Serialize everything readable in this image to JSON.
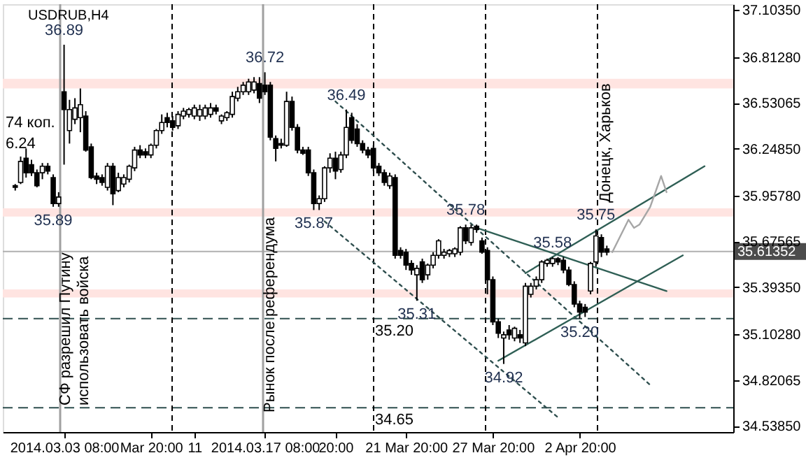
{
  "chart_data": {
    "type": "candlestick",
    "title": "USDRUB,H4",
    "categories": [
      null,
      null,
      null,
      null,
      null,
      null,
      null,
      null,
      null,
      "2014.03.03 08:00",
      null,
      null,
      null,
      null,
      null,
      null,
      null,
      null,
      null,
      null,
      null,
      null,
      null,
      null,
      null,
      "Mar 20:00",
      null,
      null,
      null,
      null,
      null,
      null,
      null,
      "11",
      null,
      null,
      null,
      null,
      null,
      null,
      null,
      null,
      null,
      null,
      null,
      null,
      "2014.03.17 08:00",
      null,
      null,
      null,
      null,
      null,
      null,
      null,
      null,
      null,
      null,
      null,
      null,
      "20:00",
      null,
      null,
      null,
      null,
      null,
      null,
      null,
      null,
      null,
      null,
      null,
      null,
      "21 Mar 20:00",
      null,
      null,
      null,
      null,
      null,
      null,
      null,
      null,
      null,
      null,
      null,
      null,
      null,
      null,
      null,
      "27 Mar 20:00",
      null,
      null,
      null,
      null,
      null,
      null,
      null,
      null,
      null,
      null,
      null,
      null,
      null,
      null,
      null,
      "2 Apr 20:00",
      null,
      null,
      null,
      null,
      null,
      null,
      null,
      null,
      null,
      null,
      null,
      null,
      null,
      null,
      null,
      null,
      null,
      null,
      null,
      null,
      null,
      null,
      null,
      null,
      null,
      null,
      null
    ],
    "ohlc": [
      [
        36.02,
        36.03,
        35.99,
        36.01
      ],
      [
        36.04,
        36.2,
        36.03,
        36.17
      ],
      [
        36.19,
        36.25,
        36.07,
        36.1
      ],
      [
        36.15,
        36.18,
        36.08,
        36.1
      ],
      [
        36.1,
        36.12,
        36.01,
        36.02
      ],
      [
        36.1,
        36.16,
        36.06,
        36.14
      ],
      [
        36.14,
        36.16,
        36.09,
        36.11
      ],
      [
        36.07,
        36.09,
        35.89,
        35.91
      ],
      [
        35.91,
        35.98,
        35.89,
        35.95
      ],
      [
        36.6,
        36.89,
        36.15,
        36.49
      ],
      [
        36.36,
        36.55,
        36.28,
        36.49
      ],
      [
        36.43,
        36.56,
        36.4,
        36.5
      ],
      [
        36.44,
        36.62,
        36.35,
        36.52
      ],
      [
        36.45,
        36.48,
        36.23,
        36.24
      ],
      [
        36.26,
        36.28,
        36.06,
        36.07
      ],
      [
        36.08,
        36.1,
        36.03,
        36.06
      ],
      [
        36.07,
        36.09,
        36.02,
        36.04
      ],
      [
        36.01,
        36.16,
        35.99,
        36.14
      ],
      [
        36.14,
        36.16,
        35.9,
        35.97
      ],
      [
        35.99,
        36.1,
        35.98,
        36.07
      ],
      [
        36.03,
        36.09,
        36.01,
        36.07
      ],
      [
        36.06,
        36.15,
        36.04,
        36.14
      ],
      [
        36.13,
        36.26,
        36.11,
        36.24
      ],
      [
        36.24,
        36.27,
        36.19,
        36.21
      ],
      [
        36.23,
        36.25,
        36.19,
        36.21
      ],
      [
        36.21,
        36.28,
        36.19,
        36.27
      ],
      [
        36.27,
        36.37,
        36.25,
        36.36
      ],
      [
        36.36,
        36.46,
        36.34,
        36.41
      ],
      [
        36.44,
        36.47,
        36.38,
        36.41
      ],
      [
        36.42,
        36.45,
        36.36,
        36.38
      ],
      [
        36.39,
        36.48,
        36.37,
        36.46
      ],
      [
        36.45,
        36.5,
        36.43,
        36.48
      ],
      [
        36.46,
        36.5,
        36.44,
        36.49
      ],
      [
        36.45,
        36.52,
        36.43,
        36.5
      ],
      [
        36.45,
        36.52,
        36.42,
        36.49
      ],
      [
        36.45,
        36.52,
        36.43,
        36.5
      ],
      [
        36.46,
        36.53,
        36.44,
        36.5
      ],
      [
        36.5,
        36.52,
        36.46,
        36.48
      ],
      [
        36.42,
        36.46,
        36.4,
        36.45
      ],
      [
        36.44,
        36.48,
        36.42,
        36.47
      ],
      [
        36.46,
        36.6,
        36.44,
        36.57
      ],
      [
        36.56,
        36.63,
        36.54,
        36.6
      ],
      [
        36.6,
        36.66,
        36.58,
        36.64
      ],
      [
        36.6,
        36.68,
        36.58,
        36.66
      ],
      [
        36.61,
        36.69,
        36.59,
        36.66
      ],
      [
        36.65,
        36.69,
        36.53,
        36.56
      ],
      [
        36.64,
        36.72,
        36.58,
        36.6
      ],
      [
        36.64,
        36.66,
        36.3,
        36.32
      ],
      [
        36.31,
        36.33,
        36.17,
        36.25
      ],
      [
        36.28,
        36.31,
        36.25,
        36.27
      ],
      [
        36.27,
        36.6,
        36.26,
        36.54
      ],
      [
        36.54,
        36.57,
        36.36,
        36.38
      ],
      [
        36.38,
        36.4,
        36.22,
        36.24
      ],
      [
        36.24,
        36.26,
        36.21,
        36.22
      ],
      [
        36.24,
        36.26,
        36.08,
        36.1
      ],
      [
        36.1,
        36.12,
        35.87,
        35.91
      ],
      [
        35.91,
        35.96,
        35.87,
        35.94
      ],
      [
        35.94,
        36.14,
        35.92,
        36.13
      ],
      [
        36.13,
        36.22,
        36.1,
        36.19
      ],
      [
        36.19,
        36.23,
        36.06,
        36.11
      ],
      [
        36.12,
        36.23,
        36.1,
        36.21
      ],
      [
        36.21,
        36.49,
        36.19,
        36.38
      ],
      [
        36.44,
        36.47,
        36.28,
        36.3
      ],
      [
        36.37,
        36.4,
        36.26,
        36.28
      ],
      [
        36.28,
        36.3,
        36.22,
        36.24
      ],
      [
        36.24,
        36.26,
        36.19,
        36.21
      ],
      [
        36.25,
        36.27,
        36.11,
        36.13
      ],
      [
        36.14,
        36.16,
        36.08,
        36.1
      ],
      [
        36.1,
        36.12,
        36.02,
        36.04
      ],
      [
        36.02,
        36.1,
        36.0,
        36.08
      ],
      [
        36.07,
        36.09,
        35.57,
        35.59
      ],
      [
        35.62,
        35.64,
        35.57,
        35.59
      ],
      [
        35.61,
        35.63,
        35.5,
        35.53
      ],
      [
        35.54,
        35.56,
        35.47,
        35.5
      ],
      [
        35.47,
        35.53,
        35.31,
        35.51
      ],
      [
        35.55,
        35.57,
        35.42,
        35.44
      ],
      [
        35.47,
        35.54,
        35.44,
        35.53
      ],
      [
        35.53,
        35.61,
        35.51,
        35.59
      ],
      [
        35.59,
        35.69,
        35.57,
        35.68
      ],
      [
        35.59,
        35.63,
        35.57,
        35.61
      ],
      [
        35.6,
        35.63,
        35.58,
        35.62
      ],
      [
        35.6,
        35.64,
        35.58,
        35.63
      ],
      [
        35.61,
        35.77,
        35.59,
        35.76
      ],
      [
        35.76,
        35.78,
        35.66,
        35.68
      ],
      [
        35.67,
        35.78,
        35.65,
        35.76
      ],
      [
        35.77,
        35.78,
        35.73,
        35.75
      ],
      [
        35.68,
        35.7,
        35.6,
        35.61
      ],
      [
        35.62,
        35.64,
        35.35,
        35.44
      ],
      [
        35.44,
        35.46,
        35.16,
        35.18
      ],
      [
        35.18,
        35.2,
        35.08,
        35.11
      ],
      [
        35.08,
        35.12,
        34.92,
        35.1
      ],
      [
        35.13,
        35.16,
        35.07,
        35.1
      ],
      [
        35.08,
        35.15,
        35.06,
        35.14
      ],
      [
        35.1,
        35.13,
        35.05,
        35.08
      ],
      [
        35.05,
        35.42,
        35.03,
        35.4
      ],
      [
        35.35,
        35.42,
        35.33,
        35.4
      ],
      [
        35.4,
        35.46,
        35.38,
        35.44
      ],
      [
        35.44,
        35.56,
        35.42,
        35.55
      ],
      [
        35.54,
        35.57,
        35.52,
        35.56
      ],
      [
        35.54,
        35.58,
        35.52,
        35.57
      ],
      [
        35.57,
        35.58,
        35.53,
        35.55
      ],
      [
        35.56,
        35.58,
        35.48,
        35.5
      ],
      [
        35.5,
        35.52,
        35.4,
        35.41
      ],
      [
        35.41,
        35.43,
        35.27,
        35.29
      ],
      [
        35.29,
        35.31,
        35.2,
        35.24
      ],
      [
        35.27,
        35.29,
        35.21,
        35.24
      ],
      [
        35.37,
        35.55,
        35.35,
        35.54
      ],
      [
        35.55,
        35.75,
        35.52,
        35.71
      ],
      [
        35.7,
        35.72,
        35.58,
        35.61
      ],
      [
        35.63,
        35.65,
        35.59,
        35.61
      ],
      null,
      null,
      null,
      null,
      null,
      null,
      null,
      null,
      null,
      null,
      null,
      null,
      null,
      null,
      null,
      null,
      null,
      null,
      null,
      null,
      null,
      null
    ],
    "series": [
      {
        "type": "line",
        "color": "#2f4f4f",
        "line_style": "dotted",
        "values": [
          null,
          null,
          null,
          null,
          null,
          null,
          null,
          null,
          null,
          null,
          null,
          null,
          null,
          null,
          null,
          null,
          null,
          null,
          null,
          null,
          null,
          null,
          null,
          null,
          null,
          null,
          null,
          null,
          null,
          null,
          null,
          null,
          null,
          null,
          null,
          null,
          null,
          null,
          null,
          null,
          null,
          null,
          null,
          null,
          null,
          null,
          null,
          null,
          null,
          null,
          null,
          null,
          null,
          null,
          null,
          null,
          null,
          null,
          null,
          36.54,
          null,
          null,
          null,
          null,
          null,
          null,
          null,
          null,
          null,
          null,
          null,
          null,
          null,
          null,
          null,
          null,
          null,
          null,
          null,
          null,
          null,
          null,
          null,
          null,
          null,
          null,
          null,
          null,
          null,
          null,
          null,
          null,
          null,
          null,
          null,
          null,
          null,
          null,
          null,
          null,
          null,
          null,
          null,
          null,
          null,
          null,
          null,
          null,
          null,
          null,
          null,
          null,
          null,
          null,
          null,
          null,
          null,
          34.79,
          null,
          null,
          null,
          null,
          null,
          null,
          null,
          null,
          null,
          null,
          null,
          null,
          null,
          null
        ]
      },
      {
        "type": "line",
        "color": "#2f4f4f",
        "line_style": "dotted",
        "values": [
          null,
          null,
          null,
          null,
          null,
          null,
          null,
          null,
          null,
          null,
          null,
          null,
          null,
          null,
          null,
          null,
          null,
          null,
          null,
          null,
          null,
          null,
          null,
          null,
          null,
          null,
          null,
          null,
          null,
          null,
          null,
          null,
          null,
          null,
          null,
          null,
          null,
          null,
          null,
          null,
          null,
          null,
          null,
          null,
          null,
          null,
          null,
          null,
          null,
          null,
          null,
          null,
          null,
          null,
          null,
          null,
          null,
          35.8,
          null,
          null,
          null,
          null,
          null,
          null,
          null,
          null,
          null,
          null,
          null,
          null,
          null,
          null,
          null,
          null,
          null,
          null,
          null,
          null,
          null,
          null,
          null,
          null,
          null,
          null,
          null,
          null,
          null,
          null,
          null,
          null,
          null,
          null,
          null,
          null,
          null,
          null,
          null,
          null,
          null,
          null,
          34.59,
          null,
          null,
          null,
          null,
          null,
          null,
          null,
          null,
          null,
          null,
          null,
          null,
          null,
          null,
          null,
          null,
          null,
          null,
          null,
          null,
          null,
          null,
          null,
          null,
          null,
          null,
          null,
          null,
          null,
          null,
          null
        ]
      },
      {
        "type": "line",
        "color": "#2f5f55",
        "line_style": "solid",
        "values": [
          null,
          null,
          null,
          null,
          null,
          null,
          null,
          null,
          null,
          null,
          null,
          null,
          null,
          null,
          null,
          null,
          null,
          null,
          null,
          null,
          null,
          null,
          null,
          null,
          null,
          null,
          null,
          null,
          null,
          null,
          null,
          null,
          null,
          null,
          null,
          null,
          null,
          null,
          null,
          null,
          null,
          null,
          null,
          null,
          null,
          null,
          null,
          null,
          null,
          null,
          null,
          null,
          null,
          null,
          null,
          null,
          null,
          null,
          null,
          null,
          null,
          null,
          null,
          null,
          null,
          null,
          null,
          null,
          null,
          null,
          null,
          null,
          null,
          null,
          null,
          null,
          null,
          null,
          null,
          null,
          null,
          null,
          null,
          null,
          null,
          35.76,
          null,
          null,
          null,
          null,
          null,
          null,
          null,
          null,
          null,
          null,
          null,
          null,
          null,
          null,
          null,
          null,
          null,
          null,
          null,
          null,
          null,
          null,
          null,
          null,
          null,
          null,
          null,
          null,
          null,
          null,
          null,
          null,
          null,
          null,
          35.37,
          null,
          null,
          null,
          null,
          null,
          null,
          null,
          null,
          null,
          null,
          null
        ]
      },
      {
        "type": "line",
        "color": "#2f5f55",
        "line_style": "solid",
        "values": [
          null,
          null,
          null,
          null,
          null,
          null,
          null,
          null,
          null,
          null,
          null,
          null,
          null,
          null,
          null,
          null,
          null,
          null,
          null,
          null,
          null,
          null,
          null,
          null,
          null,
          null,
          null,
          null,
          null,
          null,
          null,
          null,
          null,
          null,
          null,
          null,
          null,
          null,
          null,
          null,
          null,
          null,
          null,
          null,
          null,
          null,
          null,
          null,
          null,
          null,
          null,
          null,
          null,
          null,
          null,
          null,
          null,
          null,
          null,
          null,
          null,
          null,
          null,
          null,
          null,
          null,
          null,
          null,
          null,
          null,
          null,
          null,
          null,
          null,
          null,
          null,
          null,
          null,
          null,
          null,
          null,
          null,
          null,
          null,
          null,
          null,
          null,
          null,
          null,
          34.94,
          null,
          null,
          null,
          null,
          null,
          null,
          null,
          null,
          null,
          null,
          null,
          null,
          null,
          null,
          null,
          null,
          null,
          null,
          null,
          null,
          null,
          null,
          null,
          null,
          null,
          null,
          null,
          null,
          null,
          null,
          null,
          null,
          null,
          35.59,
          null,
          null,
          null,
          null,
          null,
          null,
          null,
          null
        ]
      },
      {
        "type": "line",
        "color": "#2f5f55",
        "line_style": "solid",
        "values": [
          null,
          null,
          null,
          null,
          null,
          null,
          null,
          null,
          null,
          null,
          null,
          null,
          null,
          null,
          null,
          null,
          null,
          null,
          null,
          null,
          null,
          null,
          null,
          null,
          null,
          null,
          null,
          null,
          null,
          null,
          null,
          null,
          null,
          null,
          null,
          null,
          null,
          null,
          null,
          null,
          null,
          null,
          null,
          null,
          null,
          null,
          null,
          null,
          null,
          null,
          null,
          null,
          null,
          null,
          null,
          null,
          null,
          null,
          null,
          null,
          null,
          null,
          null,
          null,
          null,
          null,
          null,
          null,
          null,
          null,
          null,
          null,
          null,
          null,
          null,
          null,
          null,
          null,
          null,
          null,
          null,
          null,
          null,
          null,
          null,
          null,
          null,
          null,
          null,
          null,
          null,
          null,
          null,
          null,
          35.48,
          null,
          null,
          null,
          null,
          null,
          null,
          null,
          null,
          null,
          null,
          null,
          null,
          null,
          null,
          null,
          null,
          null,
          null,
          null,
          null,
          null,
          null,
          null,
          null,
          null,
          null,
          null,
          null,
          null,
          null,
          null,
          null,
          36.14,
          null,
          null,
          null,
          null
        ]
      },
      {
        "type": "line",
        "color": "#a6a6a6",
        "line_style": "solid",
        "values": [
          null,
          null,
          null,
          null,
          null,
          null,
          null,
          null,
          null,
          null,
          null,
          null,
          null,
          null,
          null,
          null,
          null,
          null,
          null,
          null,
          null,
          null,
          null,
          null,
          null,
          null,
          null,
          null,
          null,
          null,
          null,
          null,
          null,
          null,
          null,
          null,
          null,
          null,
          null,
          null,
          null,
          null,
          null,
          null,
          null,
          null,
          null,
          null,
          null,
          null,
          null,
          null,
          null,
          null,
          null,
          null,
          null,
          null,
          null,
          null,
          null,
          null,
          null,
          null,
          null,
          null,
          null,
          null,
          null,
          null,
          null,
          null,
          null,
          null,
          null,
          null,
          null,
          null,
          null,
          null,
          null,
          null,
          null,
          null,
          null,
          null,
          null,
          null,
          null,
          null,
          null,
          null,
          null,
          null,
          null,
          null,
          null,
          null,
          null,
          null,
          null,
          null,
          null,
          null,
          null,
          null,
          null,
          null,
          null,
          null,
          35.61,
          null,
          null,
          35.81,
          35.76,
          35.78,
          null,
          35.89,
          null,
          36.08,
          35.98,
          null,
          null,
          null,
          null,
          null,
          null,
          null,
          null,
          null,
          null,
          null
        ]
      }
    ],
    "ylim": [
      34.5,
      37.14
    ],
    "yticks": [
      {
        "value": 37.1035,
        "label": "37.10350"
      },
      {
        "value": 36.8128,
        "label": "36.81280"
      },
      {
        "value": 36.53065,
        "label": "36.53065"
      },
      {
        "value": 36.2485,
        "label": "36.24850"
      },
      {
        "value": 35.9578,
        "label": "35.95780"
      },
      {
        "value": 35.67565,
        "label": "35.67565"
      },
      {
        "value": 35.3935,
        "label": "35.39350"
      },
      {
        "value": 35.1028,
        "label": "35.10280"
      },
      {
        "value": 34.82065,
        "label": "34.82065"
      },
      {
        "value": 34.5385,
        "label": "34.53850"
      }
    ],
    "bands": [
      {
        "axis": "y",
        "from": 36.62,
        "to": 36.68,
        "color": "#ffe4e1"
      },
      {
        "axis": "y",
        "from": 35.83,
        "to": 35.88,
        "color": "#ffe4e1"
      },
      {
        "axis": "y",
        "from": 35.33,
        "to": 35.38,
        "color": "#ffe4e1"
      }
    ],
    "ref_lines": [
      {
        "axis": "y",
        "value": 35.61352,
        "label": "35.61352",
        "color": "#b0b0b0",
        "line_style": "solid"
      },
      {
        "axis": "y",
        "value": 35.2,
        "label": "35.20",
        "color": "#2f4f4f",
        "line_style": "dashed"
      },
      {
        "axis": "y",
        "value": 34.65,
        "label": "34.65",
        "color": "#2f4f4f",
        "line_style": "dashed"
      }
    ],
    "annotations": [
      "74 коп.",
      "6.24",
      "СФ разрешил Путину\nиспользовать войска",
      "Рынок после референдума",
      "Донецк, Харьков",
      {
        "text": "36.89",
        "y": 36.89
      },
      {
        "text": "35.89",
        "y": 35.89
      },
      {
        "text": "36.72",
        "y": 36.72
      },
      {
        "text": "36.49",
        "y": 36.49
      },
      {
        "text": "35.87",
        "y": 35.87
      },
      {
        "text": "35.78",
        "y": 35.78
      },
      {
        "text": "35.31",
        "y": 35.31
      },
      {
        "text": "34.92",
        "y": 34.92
      },
      {
        "text": "35.58",
        "y": 35.58
      },
      {
        "text": "35.20",
        "y": 35.2
      },
      {
        "text": "35.75",
        "y": 35.75
      }
    ],
    "grid": false,
    "marker": "none"
  }
}
